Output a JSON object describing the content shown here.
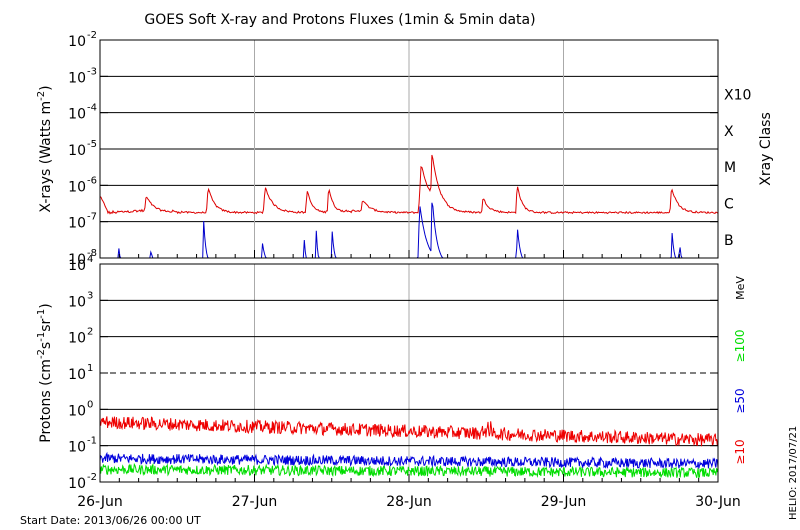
{
  "chart_data": {
    "title": "GOES Soft X-ray and Protons Fluxes   (1min & 5min data)",
    "start_date": "Start Date: 2013/06/26 00:00 UT",
    "credit": "HELIO: 2017/07/21",
    "x_ticks": [
      "26-Jun",
      "27-Jun",
      "28-Jun",
      "29-Jun",
      "30-Jun"
    ],
    "x_range_days": [
      0,
      4
    ],
    "xray": {
      "type": "line",
      "ylabel": "X-rays (Watts m",
      "ylabel_sup": "-2",
      "ylabel_tail": ")",
      "y_scale": "log",
      "ylim_exp": [
        -8,
        -2
      ],
      "y_tick_exps": [
        "-8",
        "-7",
        "-6",
        "-5",
        "-4",
        "-3",
        "-2"
      ],
      "right_axis_title": "Xray Class",
      "classes": [
        {
          "label": "B",
          "exp": -7
        },
        {
          "label": "C",
          "exp": -6
        },
        {
          "label": "M",
          "exp": -5
        },
        {
          "label": "X",
          "exp": -4
        },
        {
          "label": "X10",
          "exp": -3
        }
      ],
      "series": [
        {
          "color": "#dd0000",
          "base_exp": -6.75,
          "events": [
            {
              "day": 0.3,
              "exp": -6.3,
              "width": 0.05
            },
            {
              "day": 0.7,
              "exp": -6.05,
              "width": 0.04
            },
            {
              "day": 1.07,
              "exp": -6.05,
              "width": 0.05
            },
            {
              "day": 1.34,
              "exp": -6.1,
              "width": 0.03
            },
            {
              "day": 1.48,
              "exp": -6.05,
              "width": 0.03
            },
            {
              "day": 1.7,
              "exp": -6.4,
              "width": 0.05
            },
            {
              "day": 2.08,
              "exp": -5.45,
              "width": 0.07
            },
            {
              "day": 2.15,
              "exp": -5.1,
              "width": 0.05
            },
            {
              "day": 2.48,
              "exp": -6.35,
              "width": 0.04
            },
            {
              "day": 2.7,
              "exp": -5.95,
              "width": 0.03
            },
            {
              "day": 3.7,
              "exp": -6.05,
              "width": 0.04
            }
          ]
        },
        {
          "color": "#0000cc",
          "base_exp": -8.2,
          "events": [
            {
              "day": 0.12,
              "exp": -7.6,
              "width": 0.01
            },
            {
              "day": 0.33,
              "exp": -7.7,
              "width": 0.01
            },
            {
              "day": 0.67,
              "exp": -6.9,
              "width": 0.015
            },
            {
              "day": 1.05,
              "exp": -7.55,
              "width": 0.02
            },
            {
              "day": 1.32,
              "exp": -7.3,
              "width": 0.01
            },
            {
              "day": 1.4,
              "exp": -7.25,
              "width": 0.01
            },
            {
              "day": 1.5,
              "exp": -7.05,
              "width": 0.015
            },
            {
              "day": 2.07,
              "exp": -6.55,
              "width": 0.05
            },
            {
              "day": 2.15,
              "exp": -6.3,
              "width": 0.03
            },
            {
              "day": 2.6,
              "exp": -8.0,
              "width": 0.01
            },
            {
              "day": 2.7,
              "exp": -7.05,
              "width": 0.02
            },
            {
              "day": 3.7,
              "exp": -7.1,
              "width": 0.015
            },
            {
              "day": 3.75,
              "exp": -7.4,
              "width": 0.01
            }
          ]
        }
      ]
    },
    "protons": {
      "type": "line",
      "ylabel": "Protons (cm",
      "ylabel_parts": [
        "-2",
        "s",
        "-1",
        "sr",
        "-1"
      ],
      "ylabel_tail": ")",
      "y_scale": "log",
      "ylim_exp": [
        -2,
        4
      ],
      "y_tick_labels": [
        "10",
        "10",
        "10",
        "10",
        "10",
        "10",
        "10"
      ],
      "y_tick_sups": [
        "-2",
        "-1",
        "0",
        "1",
        "2",
        "3",
        "4"
      ],
      "threshold_exp": 1,
      "unit_label": "MeV",
      "series": [
        {
          "name": "≥10",
          "color": "#ee0000",
          "start_exp": -0.35,
          "end_exp": -0.85,
          "noise": 0.18
        },
        {
          "name": "≥50",
          "color": "#0000dd",
          "start_exp": -1.35,
          "end_exp": -1.5,
          "noise": 0.14
        },
        {
          "name": "≥100",
          "color": "#00dd00",
          "start_exp": -1.65,
          "end_exp": -1.75,
          "noise": 0.14
        }
      ]
    }
  }
}
